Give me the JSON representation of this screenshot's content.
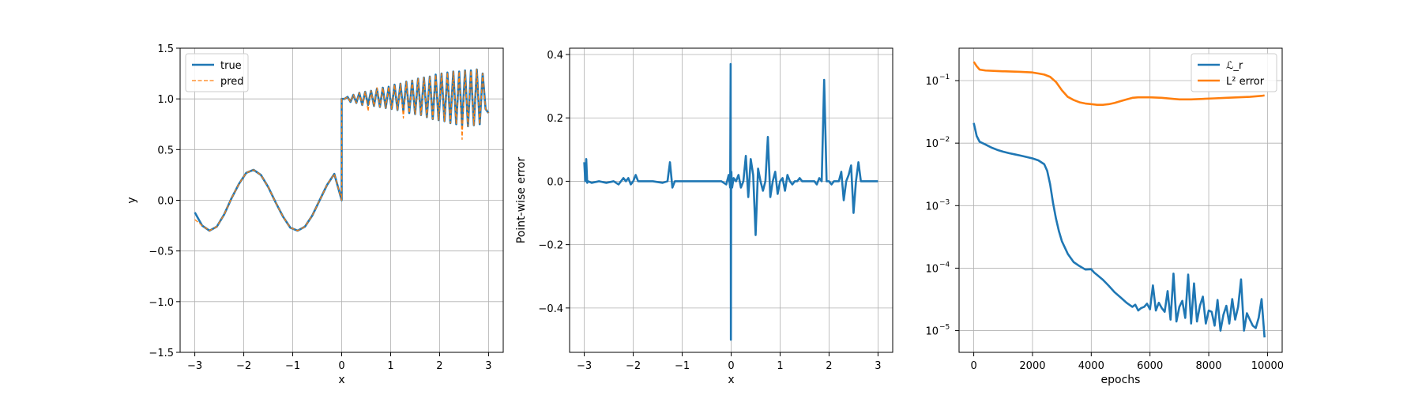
{
  "chart_data": [
    {
      "type": "line",
      "xlabel": "x",
      "ylabel": "y",
      "xlim": [
        -3.3,
        3.3
      ],
      "ylim": [
        -1.5,
        1.5
      ],
      "xticks": [
        -3,
        -2,
        -1,
        0,
        1,
        2,
        3
      ],
      "yticks": [
        -1.5,
        -1.0,
        -0.5,
        0.0,
        0.5,
        1.0,
        1.5
      ],
      "xticklabels": [
        "−3",
        "−2",
        "−1",
        "0",
        "1",
        "2",
        "3"
      ],
      "yticklabels": [
        "−1.5",
        "−1.0",
        "−0.5",
        "0.0",
        "0.5",
        "1.0",
        "1.5"
      ],
      "grid": true,
      "legend": "top-left",
      "series": [
        {
          "name": "true",
          "color": "#1f77b4",
          "style": "solid",
          "x": [
            -3.0,
            -2.85,
            -2.7,
            -2.55,
            -2.4,
            -2.25,
            -2.1,
            -1.95,
            -1.8,
            -1.65,
            -1.5,
            -1.35,
            -1.2,
            -1.05,
            -0.9,
            -0.75,
            -0.6,
            -0.45,
            -0.3,
            -0.15,
            0.0,
            0.0,
            0.06,
            0.12,
            0.18,
            0.24,
            0.3,
            0.36,
            0.42,
            0.48,
            0.54,
            0.6,
            0.66,
            0.72,
            0.78,
            0.84,
            0.9,
            0.96,
            1.02,
            1.08,
            1.14,
            1.2,
            1.26,
            1.32,
            1.38,
            1.44,
            1.5,
            1.56,
            1.62,
            1.68,
            1.74,
            1.8,
            1.86,
            1.92,
            1.98,
            2.04,
            2.1,
            2.16,
            2.22,
            2.28,
            2.34,
            2.4,
            2.46,
            2.52,
            2.58,
            2.64,
            2.7,
            2.76,
            2.82,
            2.88,
            2.94,
            3.0
          ],
          "y": [
            -0.12,
            -0.25,
            -0.3,
            -0.26,
            -0.14,
            0.02,
            0.16,
            0.27,
            0.3,
            0.25,
            0.13,
            -0.02,
            -0.16,
            -0.27,
            -0.3,
            -0.26,
            -0.15,
            0.0,
            0.15,
            0.26,
            0.0,
            1.0,
            1.0,
            1.02,
            0.97,
            1.04,
            0.96,
            1.06,
            0.94,
            1.07,
            0.94,
            1.08,
            0.93,
            1.1,
            0.92,
            1.11,
            0.91,
            1.12,
            0.9,
            1.14,
            0.89,
            1.15,
            0.88,
            1.17,
            0.86,
            1.18,
            0.85,
            1.2,
            0.84,
            1.21,
            0.82,
            1.22,
            0.8,
            1.24,
            0.79,
            1.25,
            0.78,
            1.26,
            0.76,
            1.27,
            0.75,
            1.27,
            0.74,
            1.28,
            0.73,
            1.28,
            0.74,
            1.29,
            0.75,
            1.25,
            0.9,
            0.86
          ]
        },
        {
          "name": "pred",
          "color": "#ff7f0e",
          "style": "dashed",
          "x": [
            -3.0,
            -2.85,
            -2.7,
            -2.55,
            -2.4,
            -2.25,
            -2.1,
            -1.95,
            -1.8,
            -1.65,
            -1.5,
            -1.35,
            -1.2,
            -1.05,
            -0.9,
            -0.75,
            -0.6,
            -0.45,
            -0.3,
            -0.15,
            0.0,
            0.0,
            0.06,
            0.12,
            0.18,
            0.24,
            0.3,
            0.36,
            0.42,
            0.48,
            0.54,
            0.6,
            0.66,
            0.72,
            0.78,
            0.84,
            0.9,
            0.96,
            1.02,
            1.08,
            1.14,
            1.2,
            1.26,
            1.32,
            1.38,
            1.44,
            1.5,
            1.56,
            1.62,
            1.68,
            1.74,
            1.8,
            1.86,
            1.92,
            1.98,
            2.04,
            2.1,
            2.16,
            2.22,
            2.28,
            2.34,
            2.4,
            2.46,
            2.52,
            2.58,
            2.64,
            2.7,
            2.76,
            2.82,
            2.88,
            2.94,
            3.0
          ],
          "y": [
            -0.19,
            -0.25,
            -0.3,
            -0.26,
            -0.14,
            0.02,
            0.16,
            0.27,
            0.3,
            0.25,
            0.13,
            -0.02,
            -0.16,
            -0.27,
            -0.3,
            -0.26,
            -0.15,
            0.0,
            0.15,
            0.26,
            0.0,
            1.0,
            1.0,
            1.02,
            0.97,
            1.04,
            0.96,
            1.06,
            0.94,
            1.07,
            0.88,
            1.08,
            0.93,
            1.11,
            0.92,
            1.11,
            0.91,
            1.12,
            0.9,
            1.14,
            0.89,
            1.15,
            0.81,
            1.17,
            0.86,
            1.18,
            0.85,
            1.2,
            0.84,
            1.21,
            0.82,
            1.22,
            0.8,
            1.24,
            0.79,
            1.25,
            0.78,
            1.26,
            0.76,
            1.27,
            0.75,
            1.27,
            0.6,
            1.28,
            0.73,
            1.28,
            0.74,
            1.29,
            0.75,
            1.25,
            0.9,
            0.86
          ]
        }
      ]
    },
    {
      "type": "line",
      "xlabel": "x",
      "ylabel": "Point-wise error",
      "xlim": [
        -3.3,
        3.3
      ],
      "ylim": [
        -0.54,
        0.42
      ],
      "xticks": [
        -3,
        -2,
        -1,
        0,
        1,
        2,
        3
      ],
      "yticks": [
        -0.4,
        -0.2,
        0.0,
        0.2,
        0.4
      ],
      "xticklabels": [
        "−3",
        "−2",
        "−1",
        "0",
        "1",
        "2",
        "3"
      ],
      "yticklabels": [
        "−0.4",
        "−0.2",
        "0.0",
        "0.2",
        "0.4"
      ],
      "grid": true,
      "series": [
        {
          "color": "#1f77b4",
          "style": "solid",
          "x": [
            -3.0,
            -2.98,
            -2.96,
            -2.94,
            -2.92,
            -2.85,
            -2.7,
            -2.55,
            -2.4,
            -2.3,
            -2.2,
            -2.15,
            -2.1,
            -2.05,
            -2.0,
            -1.95,
            -1.9,
            -1.8,
            -1.6,
            -1.4,
            -1.3,
            -1.25,
            -1.2,
            -1.15,
            -1.1,
            -1.0,
            -0.8,
            -0.6,
            -0.4,
            -0.2,
            -0.1,
            -0.05,
            -0.02,
            -0.01,
            -0.005,
            0.0,
            0.005,
            0.01,
            0.02,
            0.05,
            0.1,
            0.15,
            0.2,
            0.25,
            0.3,
            0.35,
            0.4,
            0.45,
            0.5,
            0.55,
            0.6,
            0.65,
            0.7,
            0.75,
            0.8,
            0.85,
            0.9,
            0.95,
            1.0,
            1.05,
            1.1,
            1.15,
            1.2,
            1.25,
            1.3,
            1.35,
            1.4,
            1.45,
            1.5,
            1.55,
            1.6,
            1.65,
            1.7,
            1.75,
            1.8,
            1.85,
            1.9,
            1.95,
            2.0,
            2.05,
            2.1,
            2.15,
            2.2,
            2.25,
            2.3,
            2.35,
            2.4,
            2.45,
            2.5,
            2.55,
            2.6,
            2.65,
            2.7,
            2.75,
            2.8,
            2.85,
            2.9,
            2.95,
            3.0
          ],
          "y": [
            0.06,
            0.0,
            0.07,
            -0.005,
            0.0,
            -0.005,
            0.0,
            -0.005,
            0.0,
            -0.01,
            0.01,
            0.0,
            0.01,
            -0.01,
            0.0,
            0.02,
            0.0,
            0.0,
            0.0,
            -0.005,
            0.0,
            0.06,
            -0.02,
            0.0,
            0.0,
            0.0,
            0.0,
            0.0,
            0.0,
            0.0,
            -0.01,
            0.02,
            -0.02,
            0.37,
            -0.5,
            0.0,
            0.03,
            0.0,
            -0.02,
            0.01,
            0.0,
            0.02,
            -0.02,
            0.0,
            0.08,
            -0.05,
            0.07,
            0.02,
            -0.17,
            0.04,
            0.0,
            -0.03,
            0.0,
            0.14,
            -0.05,
            0.0,
            0.03,
            -0.04,
            0.0,
            0.01,
            -0.03,
            0.02,
            0.0,
            -0.01,
            0.0,
            0.0,
            0.01,
            0.0,
            0.0,
            0.0,
            0.0,
            0.0,
            0.0,
            -0.01,
            0.01,
            0.0,
            0.32,
            0.0,
            0.0,
            -0.01,
            0.0,
            0.0,
            0.0,
            0.03,
            -0.06,
            0.0,
            0.02,
            0.05,
            -0.1,
            0.0,
            0.06,
            0.0,
            0.0,
            0.0,
            0.0,
            0.0,
            0.0,
            0.0,
            0.0
          ]
        }
      ]
    },
    {
      "type": "line",
      "xlabel": "epochs",
      "ylabel": "",
      "xlim": [
        -500,
        10500
      ],
      "ylim": [
        4.5e-06,
        0.33
      ],
      "yscale": "log",
      "xticks": [
        0,
        2000,
        4000,
        6000,
        8000,
        10000
      ],
      "yticks": [
        1e-05,
        0.0001,
        0.001,
        0.01,
        0.1
      ],
      "xticklabels": [
        "0",
        "2000",
        "4000",
        "6000",
        "8000",
        "10000"
      ],
      "yticklabels": [
        "10",
        "10",
        "10",
        "10",
        "10"
      ],
      "ytick_exponents": [
        "−5",
        "−4",
        "−3",
        "−2",
        "−1"
      ],
      "grid": true,
      "legend": "top-right",
      "series": [
        {
          "name": "ℒ_r",
          "color": "#1f77b4",
          "style": "solid",
          "x": [
            0,
            100,
            200,
            400,
            600,
            800,
            1000,
            1200,
            1400,
            1600,
            1800,
            2000,
            2200,
            2400,
            2500,
            2600,
            2700,
            2800,
            2900,
            3000,
            3200,
            3400,
            3600,
            3800,
            4000,
            4100,
            4200,
            4400,
            4600,
            4800,
            5000,
            5200,
            5400,
            5500,
            5600,
            5700,
            5800,
            5900,
            6000,
            6100,
            6200,
            6300,
            6400,
            6500,
            6600,
            6700,
            6800,
            6900,
            7000,
            7100,
            7200,
            7300,
            7400,
            7500,
            7600,
            7700,
            7800,
            7900,
            8000,
            8100,
            8200,
            8300,
            8400,
            8500,
            8600,
            8700,
            8800,
            8900,
            9000,
            9100,
            9200,
            9300,
            9400,
            9500,
            9600,
            9700,
            9800,
            9900
          ],
          "y": [
            0.021,
            0.013,
            0.0105,
            0.0095,
            0.0085,
            0.0078,
            0.0073,
            0.0069,
            0.0066,
            0.0063,
            0.006,
            0.0057,
            0.0053,
            0.0046,
            0.0036,
            0.0022,
            0.0011,
            0.00062,
            0.00039,
            0.00027,
            0.00017,
            0.000125,
            0.000108,
            9.5e-05,
            9.6e-05,
            8.5e-05,
            7.8e-05,
            6.5e-05,
            5.2e-05,
            4.1e-05,
            3.4e-05,
            2.8e-05,
            2.4e-05,
            2.6e-05,
            2.1e-05,
            2.3e-05,
            2.4e-05,
            2.7e-05,
            2.2e-05,
            5.3e-05,
            2.1e-05,
            2.8e-05,
            2.3e-05,
            2e-05,
            4.3e-05,
            1.5e-05,
            8.2e-05,
            1.4e-05,
            2.4e-05,
            3e-05,
            1.6e-05,
            7.9e-05,
            1.3e-05,
            5.7e-05,
            1.4e-05,
            2.5e-05,
            3.5e-05,
            1.3e-05,
            2.1e-05,
            2e-05,
            1.2e-05,
            3.1e-05,
            1e-05,
            1.8e-05,
            2.5e-05,
            1.3e-05,
            3.2e-05,
            1.5e-05,
            2.4e-05,
            6.6e-05,
            1e-05,
            1.9e-05,
            1.5e-05,
            1.2e-05,
            1.1e-05,
            1.6e-05,
            3.2e-05,
            7.8e-06
          ]
        },
        {
          "name": "L² error",
          "color": "#ff7f0e",
          "style": "solid",
          "x": [
            0,
            100,
            200,
            400,
            800,
            1200,
            1600,
            2000,
            2200,
            2400,
            2600,
            2800,
            3000,
            3200,
            3400,
            3600,
            3800,
            4000,
            4200,
            4400,
            4600,
            4800,
            5000,
            5200,
            5400,
            5600,
            5800,
            6000,
            6400,
            6800,
            7000,
            7400,
            7800,
            8200,
            8600,
            9000,
            9400,
            9800,
            9900
          ],
          "y": [
            0.2,
            0.17,
            0.15,
            0.145,
            0.142,
            0.14,
            0.138,
            0.135,
            0.13,
            0.125,
            0.115,
            0.095,
            0.07,
            0.055,
            0.049,
            0.045,
            0.043,
            0.042,
            0.041,
            0.041,
            0.042,
            0.044,
            0.047,
            0.05,
            0.053,
            0.054,
            0.054,
            0.054,
            0.053,
            0.051,
            0.05,
            0.05,
            0.051,
            0.052,
            0.053,
            0.054,
            0.055,
            0.057,
            0.058
          ]
        }
      ]
    }
  ]
}
